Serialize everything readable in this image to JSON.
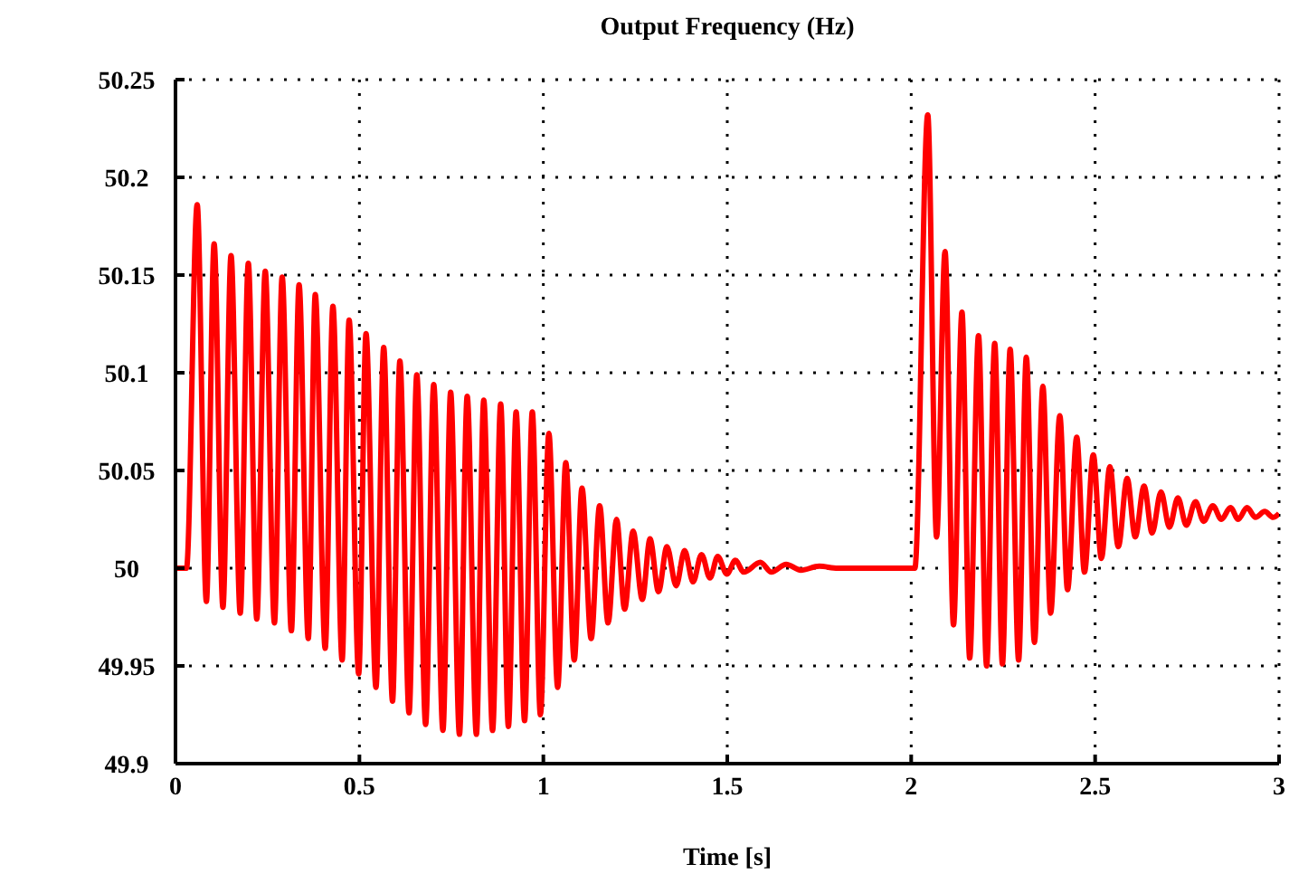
{
  "chart_data": {
    "type": "line",
    "title": "Output Frequency (Hz)",
    "xlabel": "Time [s]",
    "xlim": [
      0,
      3
    ],
    "xticks": [
      0,
      0.5,
      1,
      1.5,
      2,
      2.5,
      3
    ],
    "ylim": [
      49.9,
      50.25
    ],
    "yticks": [
      49.9,
      49.95,
      50,
      50.05,
      50.1,
      50.15,
      50.2,
      50.25
    ],
    "grid": true,
    "marker": "none",
    "line_style": "solid",
    "series": [
      {
        "color": "#ff0000",
        "x": [
          0,
          0.03,
          0.059,
          0.084,
          0.105,
          0.129,
          0.151,
          0.176,
          0.198,
          0.221,
          0.244,
          0.269,
          0.29,
          0.315,
          0.336,
          0.361,
          0.38,
          0.407,
          0.428,
          0.453,
          0.472,
          0.498,
          0.518,
          0.545,
          0.566,
          0.59,
          0.61,
          0.635,
          0.656,
          0.68,
          0.702,
          0.727,
          0.748,
          0.772,
          0.793,
          0.818,
          0.838,
          0.862,
          0.884,
          0.905,
          0.926,
          0.949,
          0.97,
          0.992,
          1.015,
          1.039,
          1.061,
          1.084,
          1.105,
          1.13,
          1.153,
          1.176,
          1.199,
          1.221,
          1.244,
          1.269,
          1.29,
          1.313,
          1.336,
          1.361,
          1.384,
          1.407,
          1.43,
          1.453,
          1.474,
          1.499,
          1.522,
          1.545,
          1.59,
          1.62,
          1.66,
          1.7,
          1.75,
          1.8,
          2.01,
          2.045,
          2.069,
          2.092,
          2.115,
          2.138,
          2.159,
          2.183,
          2.205,
          2.227,
          2.248,
          2.269,
          2.292,
          2.313,
          2.335,
          2.358,
          2.379,
          2.404,
          2.425,
          2.45,
          2.471,
          2.495,
          2.517,
          2.54,
          2.563,
          2.587,
          2.609,
          2.633,
          2.655,
          2.679,
          2.702,
          2.725,
          2.748,
          2.773,
          2.795,
          2.82,
          2.843,
          2.868,
          2.889,
          2.913,
          2.936,
          2.961,
          2.984,
          3
        ],
        "values": [
          50,
          50,
          50.186,
          49.983,
          50.166,
          49.98,
          50.16,
          49.977,
          50.156,
          49.974,
          50.152,
          49.972,
          50.149,
          49.968,
          50.145,
          49.964,
          50.14,
          49.959,
          50.134,
          49.953,
          50.127,
          49.946,
          50.12,
          49.939,
          50.113,
          49.932,
          50.106,
          49.926,
          50.099,
          49.92,
          50.094,
          49.917,
          50.09,
          49.915,
          50.088,
          49.915,
          50.086,
          49.917,
          50.084,
          49.919,
          50.08,
          49.922,
          50.08,
          49.925,
          50.069,
          49.939,
          50.054,
          49.953,
          50.041,
          49.964,
          50.032,
          49.972,
          50.025,
          49.979,
          50.019,
          49.984,
          50.015,
          49.988,
          50.011,
          49.991,
          50.009,
          49.993,
          50.007,
          49.995,
          50.006,
          49.997,
          50.004,
          49.998,
          50.003,
          49.998,
          50.002,
          49.999,
          50.001,
          50,
          50,
          50.232,
          50.016,
          50.162,
          49.971,
          50.131,
          49.954,
          50.119,
          49.95,
          50.115,
          49.951,
          50.112,
          49.953,
          50.108,
          49.962,
          50.093,
          49.977,
          50.078,
          49.989,
          50.067,
          49.998,
          50.058,
          50.005,
          50.052,
          50.011,
          50.046,
          50.016,
          50.042,
          50.018,
          50.039,
          50.021,
          50.036,
          50.022,
          50.034,
          50.024,
          50.032,
          50.025,
          50.031,
          50.025,
          50.031,
          50.026,
          50.029,
          50.026,
          50.028
        ]
      }
    ]
  }
}
